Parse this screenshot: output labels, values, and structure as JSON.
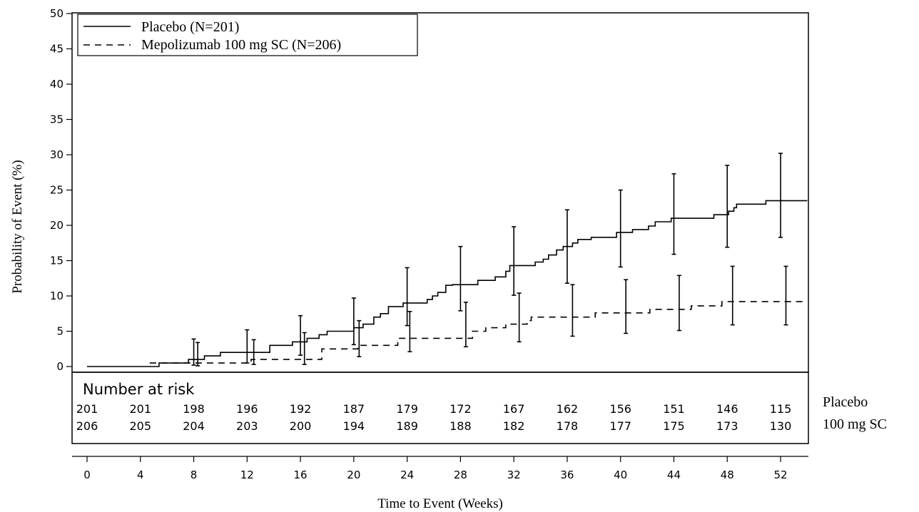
{
  "chart_data": {
    "type": "line",
    "title": "",
    "xlabel": "Time to Event (Weeks)",
    "ylabel": "Probability of Event (%)",
    "xlim": [
      0,
      54
    ],
    "ylim": [
      0,
      50
    ],
    "x_ticks": [
      0,
      4,
      8,
      12,
      16,
      20,
      24,
      28,
      32,
      36,
      40,
      44,
      48,
      52
    ],
    "y_ticks": [
      0,
      5,
      10,
      15,
      20,
      25,
      30,
      35,
      40,
      45,
      50
    ],
    "grid": false,
    "legend_position": "top-left",
    "series": [
      {
        "name": "Placebo (N=201)",
        "line_style": "solid",
        "steps": [
          [
            0,
            0
          ],
          [
            5.4,
            0.5
          ],
          [
            7.6,
            1
          ],
          [
            8.8,
            1.5
          ],
          [
            10,
            2
          ],
          [
            13.7,
            3
          ],
          [
            15.4,
            3.5
          ],
          [
            16.5,
            4
          ],
          [
            17.4,
            4.5
          ],
          [
            18,
            5
          ],
          [
            20,
            5.5
          ],
          [
            20.7,
            6
          ],
          [
            21.5,
            7
          ],
          [
            22,
            7.5
          ],
          [
            22.6,
            8.5
          ],
          [
            23.7,
            9
          ],
          [
            25.5,
            9.5
          ],
          [
            25.9,
            10
          ],
          [
            26.3,
            10.5
          ],
          [
            26.9,
            11.5
          ],
          [
            27.4,
            11.6
          ],
          [
            29.3,
            12.2
          ],
          [
            30.6,
            12.7
          ],
          [
            31.4,
            13.5
          ],
          [
            31.7,
            14.3
          ],
          [
            33.6,
            14.8
          ],
          [
            34.2,
            15.2
          ],
          [
            34.6,
            15.8
          ],
          [
            35.2,
            16.5
          ],
          [
            35.7,
            17
          ],
          [
            36.4,
            17.5
          ],
          [
            36.8,
            18
          ],
          [
            37.8,
            18.3
          ],
          [
            39.7,
            19
          ],
          [
            40.9,
            19.4
          ],
          [
            42.1,
            19.9
          ],
          [
            42.6,
            20.5
          ],
          [
            43.8,
            21
          ],
          [
            47,
            21.5
          ],
          [
            48.1,
            22
          ],
          [
            48.5,
            22.5
          ],
          [
            48.7,
            23
          ],
          [
            50.9,
            23.5
          ],
          [
            52,
            23.5
          ],
          [
            54,
            23.5
          ]
        ],
        "ci": [
          {
            "x": 8,
            "lower": 0.2,
            "upper": 3.9
          },
          {
            "x": 12,
            "lower": 0.5,
            "upper": 5.2
          },
          {
            "x": 16,
            "lower": 1.6,
            "upper": 7.2
          },
          {
            "x": 20,
            "lower": 3.1,
            "upper": 9.7
          },
          {
            "x": 24,
            "lower": 5.8,
            "upper": 14
          },
          {
            "x": 28,
            "lower": 7.9,
            "upper": 17
          },
          {
            "x": 32,
            "lower": 10.1,
            "upper": 19.8
          },
          {
            "x": 36,
            "lower": 11.8,
            "upper": 22.2
          },
          {
            "x": 40,
            "lower": 14.1,
            "upper": 25
          },
          {
            "x": 44,
            "lower": 15.9,
            "upper": 27.3
          },
          {
            "x": 48,
            "lower": 16.9,
            "upper": 28.5
          },
          {
            "x": 52,
            "lower": 18.3,
            "upper": 30.2
          }
        ]
      },
      {
        "name": "Mepolizumab 100 mg SC (N=206)",
        "line_style": "dashed",
        "steps": [
          [
            4.7,
            0.5
          ],
          [
            12.3,
            1
          ],
          [
            17.6,
            2.5
          ],
          [
            20.3,
            3
          ],
          [
            23.3,
            4
          ],
          [
            28.9,
            5
          ],
          [
            29.9,
            5.5
          ],
          [
            31.4,
            6
          ],
          [
            33,
            6.5
          ],
          [
            33.3,
            7
          ],
          [
            38.1,
            7.6
          ],
          [
            42.2,
            8.1
          ],
          [
            45.3,
            8.6
          ],
          [
            47.6,
            9.2
          ],
          [
            54,
            9.2
          ]
        ],
        "ci": [
          {
            "x": 8.3,
            "lower": 0.1,
            "upper": 3.4
          },
          {
            "x": 12.5,
            "lower": 0.3,
            "upper": 3.8
          },
          {
            "x": 16.3,
            "lower": 0.3,
            "upper": 4.8
          },
          {
            "x": 20.4,
            "lower": 1.4,
            "upper": 6.5
          },
          {
            "x": 24.2,
            "lower": 2.1,
            "upper": 7.8
          },
          {
            "x": 28.4,
            "lower": 2.8,
            "upper": 9.1
          },
          {
            "x": 32.4,
            "lower": 3.5,
            "upper": 10.4
          },
          {
            "x": 36.4,
            "lower": 4.3,
            "upper": 11.6
          },
          {
            "x": 40.4,
            "lower": 4.7,
            "upper": 12.3
          },
          {
            "x": 44.4,
            "lower": 5.1,
            "upper": 12.9
          },
          {
            "x": 48.4,
            "lower": 5.9,
            "upper": 14.2
          },
          {
            "x": 52.4,
            "lower": 5.9,
            "upper": 14.2
          }
        ]
      }
    ],
    "risk_table": {
      "title": "Number at risk",
      "times": [
        0,
        4,
        8,
        12,
        16,
        20,
        24,
        28,
        32,
        36,
        40,
        44,
        48,
        52
      ],
      "rows": [
        {
          "label": "Placebo",
          "values": [
            "201",
            "201",
            "198",
            "196",
            "192",
            "187",
            "179",
            "172",
            "167",
            "162",
            "156",
            "151",
            "146",
            "115"
          ]
        },
        {
          "label": "100 mg SC",
          "values": [
            "206",
            "205",
            "204",
            "203",
            "200",
            "194",
            "189",
            "188",
            "182",
            "178",
            "177",
            "175",
            "173",
            "130"
          ]
        }
      ]
    }
  }
}
